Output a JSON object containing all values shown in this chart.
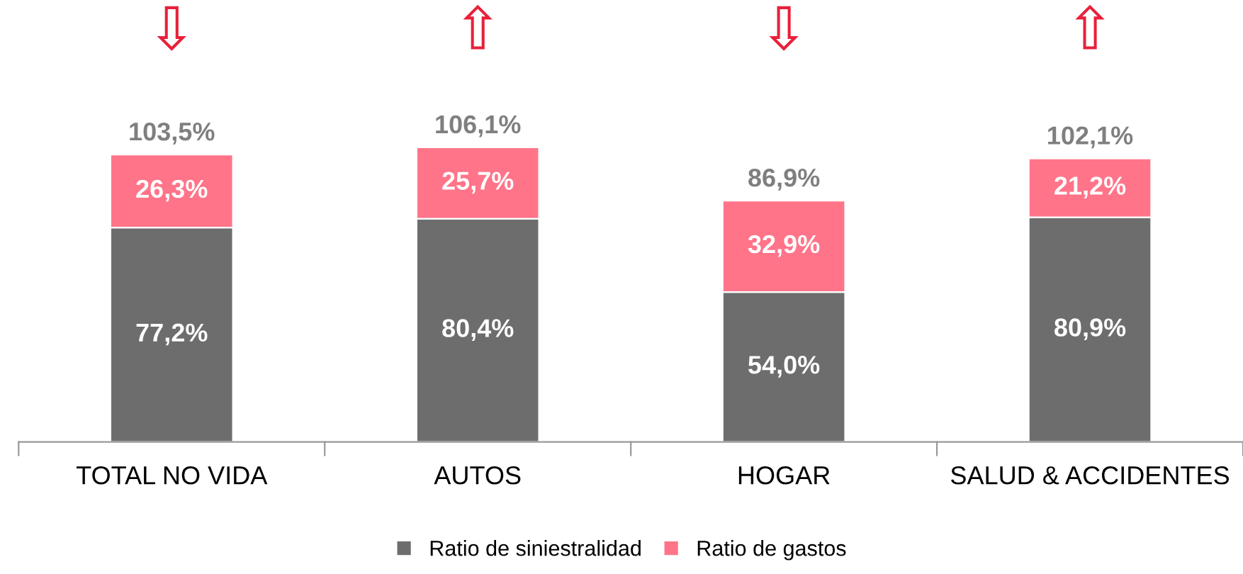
{
  "chart_data": {
    "type": "bar",
    "stacked": true,
    "categories": [
      "TOTAL NO VIDA",
      "AUTOS",
      "HOGAR",
      "SALUD & ACCIDENTES"
    ],
    "series": [
      {
        "name": "Ratio de siniestralidad",
        "color": "#6d6d6d",
        "values": [
          77.2,
          80.4,
          54.0,
          80.9
        ],
        "value_labels": [
          "77,2%",
          "80,4%",
          "54,0%",
          "80,9%"
        ]
      },
      {
        "name": "Ratio de gastos",
        "color": "#ff7489",
        "values": [
          26.3,
          25.7,
          32.9,
          21.2
        ],
        "value_labels": [
          "26,3%",
          "25,7%",
          "32,9%",
          "21,2%"
        ]
      }
    ],
    "totals": [
      "103,5%",
      "106,1%",
      "86,9%",
      "102,1%"
    ],
    "annotations": [
      "⇩",
      "⇧",
      "⇩",
      "⇧"
    ],
    "legend": "bottom",
    "grid": false
  }
}
